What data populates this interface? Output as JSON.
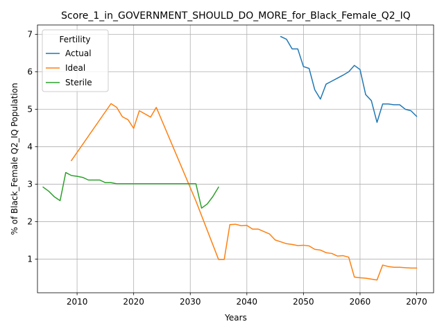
{
  "chart_data": {
    "type": "line",
    "title": "Score_1_in_GOVERNMENT_SHOULD_DO_MORE_for_Black_Female_Q2_IQ",
    "xlabel": "Years",
    "ylabel": "% of Black_Female Q2_IQ Population",
    "xlim": [
      2003,
      2073
    ],
    "ylim": [
      0.1,
      7.25
    ],
    "xticks": [
      2010,
      2020,
      2030,
      2040,
      2050,
      2060,
      2070
    ],
    "yticks": [
      1,
      2,
      3,
      4,
      5,
      6,
      7
    ],
    "grid": true,
    "legend": {
      "title": "Fertility",
      "placement": "upper-left"
    },
    "series": [
      {
        "name": "Actual",
        "color": "#1f77b4",
        "points": [
          [
            2046,
            6.94
          ],
          [
            2047,
            6.87
          ],
          [
            2048,
            6.61
          ],
          [
            2049,
            6.61
          ],
          [
            2050,
            6.14
          ],
          [
            2051,
            6.09
          ],
          [
            2052,
            5.52
          ],
          [
            2053,
            5.27
          ],
          [
            2054,
            5.67
          ],
          [
            2055,
            5.75
          ],
          [
            2056,
            5.83
          ],
          [
            2057,
            5.91
          ],
          [
            2058,
            6.0
          ],
          [
            2059,
            6.17
          ],
          [
            2060,
            6.06
          ],
          [
            2061,
            5.39
          ],
          [
            2062,
            5.23
          ],
          [
            2063,
            4.65
          ],
          [
            2064,
            5.14
          ],
          [
            2065,
            5.14
          ],
          [
            2066,
            5.12
          ],
          [
            2067,
            5.12
          ],
          [
            2068,
            5.0
          ],
          [
            2069,
            4.96
          ],
          [
            2070,
            4.81
          ]
        ]
      },
      {
        "name": "Ideal",
        "color": "#ff7f0e",
        "points": [
          [
            2009,
            3.63
          ],
          [
            2016,
            5.15
          ],
          [
            2017,
            5.05
          ],
          [
            2018,
            4.8
          ],
          [
            2019,
            4.72
          ],
          [
            2020,
            4.49
          ],
          [
            2021,
            4.96
          ],
          [
            2023,
            4.79
          ],
          [
            2024,
            5.05
          ],
          [
            2031,
            2.55
          ],
          [
            2035,
            0.99
          ],
          [
            2036,
            0.99
          ],
          [
            2037,
            1.92
          ],
          [
            2038,
            1.93
          ],
          [
            2039,
            1.89
          ],
          [
            2040,
            1.9
          ],
          [
            2041,
            1.8
          ],
          [
            2042,
            1.8
          ],
          [
            2044,
            1.67
          ],
          [
            2045,
            1.51
          ],
          [
            2046,
            1.46
          ],
          [
            2047,
            1.41
          ],
          [
            2048,
            1.39
          ],
          [
            2049,
            1.36
          ],
          [
            2050,
            1.37
          ],
          [
            2051,
            1.35
          ],
          [
            2052,
            1.26
          ],
          [
            2053,
            1.24
          ],
          [
            2054,
            1.17
          ],
          [
            2055,
            1.15
          ],
          [
            2056,
            1.08
          ],
          [
            2057,
            1.09
          ],
          [
            2058,
            1.05
          ],
          [
            2059,
            0.52
          ],
          [
            2060,
            0.5
          ],
          [
            2061,
            0.49
          ],
          [
            2063,
            0.44
          ],
          [
            2064,
            0.84
          ],
          [
            2065,
            0.8
          ],
          [
            2066,
            0.78
          ],
          [
            2067,
            0.78
          ],
          [
            2068,
            0.77
          ],
          [
            2069,
            0.76
          ],
          [
            2070,
            0.76
          ]
        ]
      },
      {
        "name": "Sterile",
        "color": "#2ca02c",
        "points": [
          [
            2004,
            2.92
          ],
          [
            2005,
            2.81
          ],
          [
            2006,
            2.66
          ],
          [
            2007,
            2.56
          ],
          [
            2008,
            3.31
          ],
          [
            2009,
            3.23
          ],
          [
            2010,
            3.21
          ],
          [
            2011,
            3.18
          ],
          [
            2012,
            3.11
          ],
          [
            2013,
            3.11
          ],
          [
            2014,
            3.11
          ],
          [
            2015,
            3.04
          ],
          [
            2016,
            3.04
          ],
          [
            2017,
            3.01
          ],
          [
            2018,
            3.01
          ],
          [
            2020,
            3.01
          ],
          [
            2025,
            3.01
          ],
          [
            2031,
            3.01
          ],
          [
            2032,
            2.36
          ],
          [
            2033,
            2.47
          ],
          [
            2034,
            2.67
          ],
          [
            2035,
            2.92
          ]
        ]
      }
    ]
  }
}
